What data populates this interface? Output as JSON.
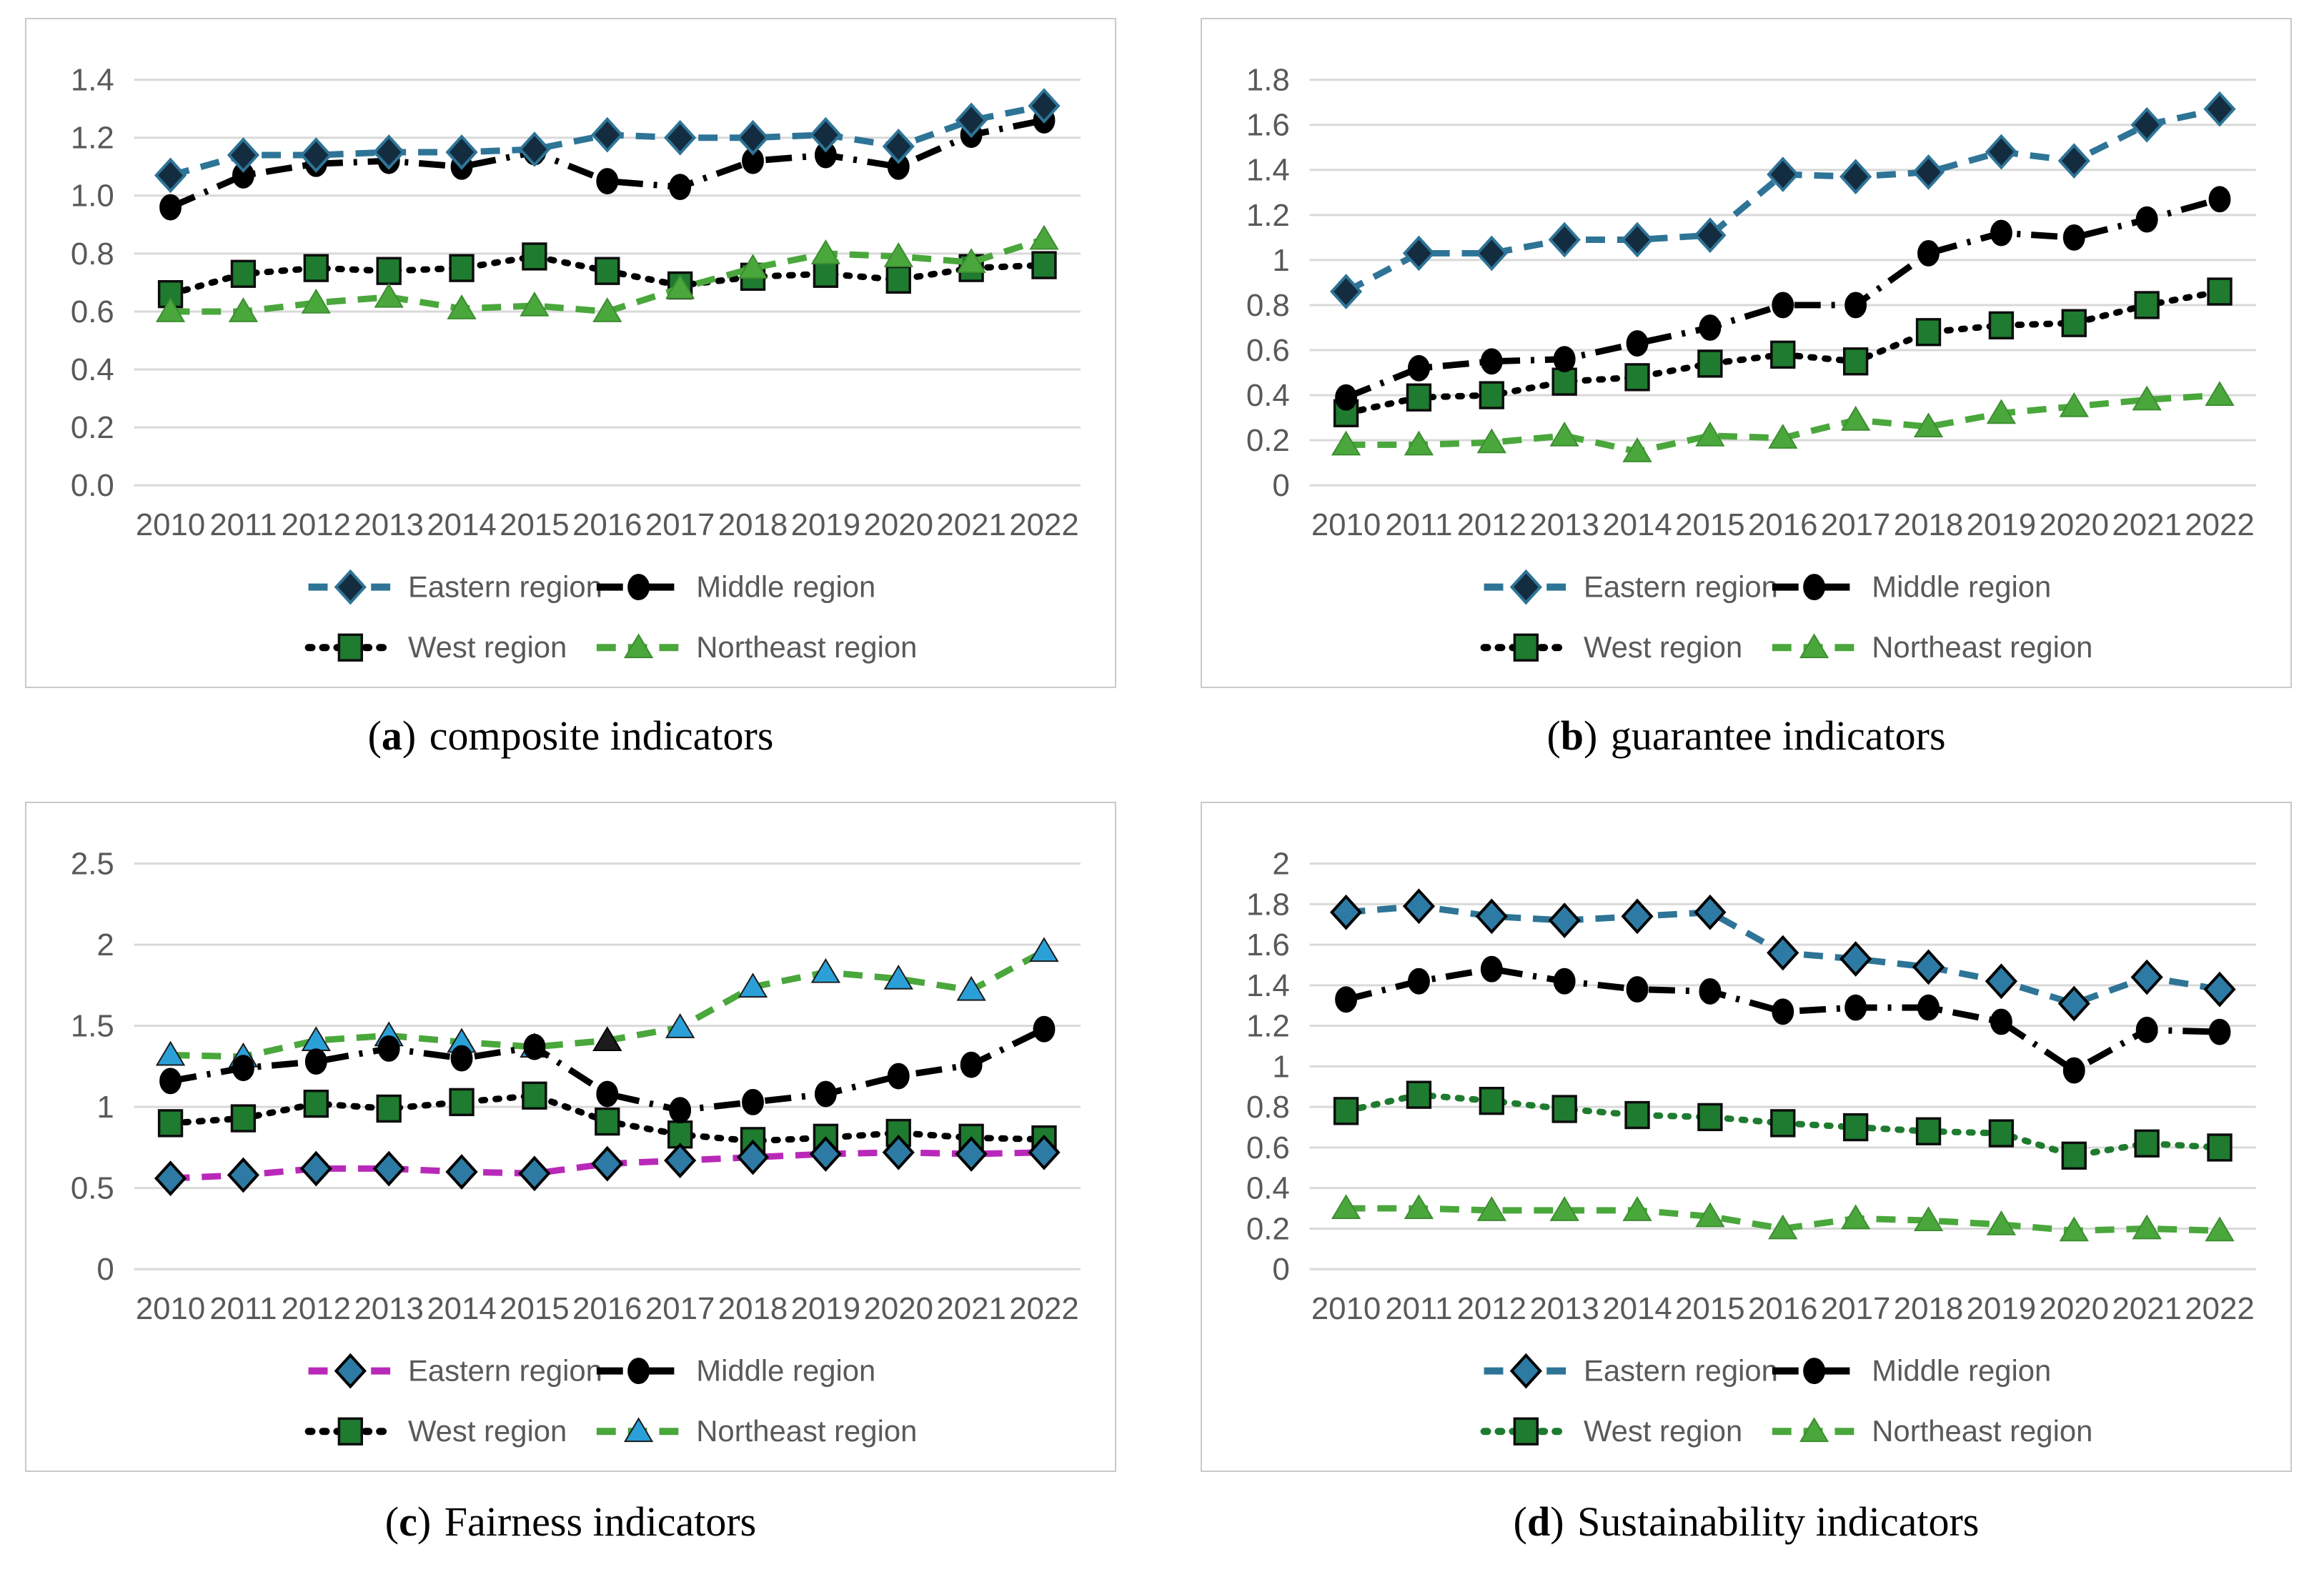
{
  "chart_data": [
    {
      "id": "a",
      "type": "line",
      "caption": {
        "open": "(",
        "letter": "a",
        "close": ")",
        "text": "composite indicators"
      },
      "categories": [
        2010,
        2011,
        2012,
        2013,
        2014,
        2015,
        2016,
        2017,
        2018,
        2019,
        2020,
        2021,
        2022
      ],
      "ylim": [
        0,
        1.4
      ],
      "ytick_step": 0.2,
      "ytick_format": "fixed1",
      "grid": true,
      "legend_position": "bottom",
      "axis_text_color": "#595959",
      "grid_color": "#d9d9d9",
      "series": [
        {
          "name": "Eastern region",
          "values": [
            1.07,
            1.14,
            1.14,
            1.15,
            1.15,
            1.16,
            1.21,
            1.2,
            1.2,
            1.21,
            1.17,
            1.26,
            1.31
          ],
          "line_color": "#2e7496",
          "line_style": "dash",
          "marker": "diamond",
          "marker_fill": "#132c40",
          "marker_stroke": "#2e7496"
        },
        {
          "name": "Middle region",
          "values": [
            0.96,
            1.07,
            1.11,
            1.12,
            1.1,
            1.15,
            1.05,
            1.03,
            1.12,
            1.14,
            1.1,
            1.21,
            1.26
          ],
          "line_color": "#000000",
          "line_style": "dashdot",
          "marker": "circle",
          "marker_fill": "#000000",
          "marker_stroke": "#000000"
        },
        {
          "name": "West region",
          "values": [
            0.66,
            0.73,
            0.75,
            0.74,
            0.75,
            0.79,
            0.74,
            0.69,
            0.72,
            0.73,
            0.71,
            0.75,
            0.76
          ],
          "line_color": "#000000",
          "line_style": "dot",
          "marker": "square",
          "marker_fill": "#1e7b2f",
          "marker_stroke": "#0d0d0d"
        },
        {
          "name": "Northeast region",
          "values": [
            0.6,
            0.6,
            0.63,
            0.65,
            0.61,
            0.62,
            0.6,
            0.68,
            0.75,
            0.8,
            0.79,
            0.77,
            0.85
          ],
          "line_color": "#4aa73c",
          "line_style": "dash",
          "marker": "triangle",
          "marker_fill": "#4aa73c",
          "marker_stroke": "#3d8d31"
        }
      ]
    },
    {
      "id": "b",
      "type": "line",
      "caption": {
        "open": "(",
        "letter": "b",
        "close": ")",
        "text": "guarantee indicators"
      },
      "categories": [
        2010,
        2011,
        2012,
        2013,
        2014,
        2015,
        2016,
        2017,
        2018,
        2019,
        2020,
        2021,
        2022
      ],
      "ylim": [
        0,
        1.8
      ],
      "ytick_step": 0.2,
      "ytick_format": "auto",
      "grid": true,
      "legend_position": "bottom",
      "axis_text_color": "#595959",
      "grid_color": "#d9d9d9",
      "series": [
        {
          "name": "Eastern region",
          "values": [
            0.86,
            1.03,
            1.03,
            1.09,
            1.09,
            1.11,
            1.38,
            1.37,
            1.39,
            1.48,
            1.44,
            1.6,
            1.67
          ],
          "line_color": "#2e7496",
          "line_style": "dash",
          "marker": "diamond",
          "marker_fill": "#132c40",
          "marker_stroke": "#2e7496"
        },
        {
          "name": "Middle region",
          "values": [
            0.39,
            0.52,
            0.55,
            0.56,
            0.63,
            0.7,
            0.8,
            0.8,
            1.03,
            1.12,
            1.1,
            1.18,
            1.27
          ],
          "line_color": "#000000",
          "line_style": "dashdot",
          "marker": "circle",
          "marker_fill": "#000000",
          "marker_stroke": "#000000"
        },
        {
          "name": "West region",
          "values": [
            0.32,
            0.39,
            0.4,
            0.46,
            0.48,
            0.54,
            0.58,
            0.55,
            0.68,
            0.71,
            0.72,
            0.8,
            0.86
          ],
          "line_color": "#000000",
          "line_style": "dot",
          "marker": "square",
          "marker_fill": "#1e7b2f",
          "marker_stroke": "#0d0d0d"
        },
        {
          "name": "Northeast region",
          "values": [
            0.18,
            0.18,
            0.19,
            0.22,
            0.15,
            0.22,
            0.21,
            0.29,
            0.26,
            0.32,
            0.35,
            0.38,
            0.4
          ],
          "line_color": "#4aa73c",
          "line_style": "dash",
          "marker": "triangle",
          "marker_fill": "#4aa73c",
          "marker_stroke": "#3d8d31"
        }
      ]
    },
    {
      "id": "c",
      "type": "line",
      "caption": {
        "open": "(",
        "letter": "c",
        "close": ")",
        "text": "Fairness indicators"
      },
      "categories": [
        2010,
        2011,
        2012,
        2013,
        2014,
        2015,
        2016,
        2017,
        2018,
        2019,
        2020,
        2021,
        2022
      ],
      "ylim": [
        0,
        2.5
      ],
      "ytick_step": 0.5,
      "ytick_format": "auto",
      "grid": true,
      "legend_position": "bottom",
      "axis_text_color": "#595959",
      "grid_color": "#d9d9d9",
      "series": [
        {
          "name": "Eastern region",
          "values": [
            0.56,
            0.58,
            0.62,
            0.62,
            0.6,
            0.59,
            0.65,
            0.67,
            0.69,
            0.71,
            0.72,
            0.71,
            0.72
          ],
          "line_color": "#b929b9",
          "line_style": "dash",
          "marker": "diamond",
          "marker_fill": "#2d7ba4",
          "marker_stroke": "#000000"
        },
        {
          "name": "Middle region",
          "values": [
            1.16,
            1.24,
            1.28,
            1.36,
            1.3,
            1.37,
            1.08,
            0.98,
            1.03,
            1.08,
            1.19,
            1.26,
            1.48
          ],
          "line_color": "#000000",
          "line_style": "dashdot",
          "marker": "circle",
          "marker_fill": "#000000",
          "marker_stroke": "#000000"
        },
        {
          "name": "West region",
          "values": [
            0.9,
            0.93,
            1.02,
            0.99,
            1.03,
            1.07,
            0.91,
            0.83,
            0.79,
            0.81,
            0.84,
            0.81,
            0.8
          ],
          "line_color": "#000000",
          "line_style": "dot",
          "marker": "square",
          "marker_fill": "#1e7b2f",
          "marker_stroke": "#0d0d0d"
        },
        {
          "name": "Northeast region",
          "values": [
            1.32,
            1.31,
            1.41,
            1.44,
            1.4,
            1.37,
            1.41,
            1.49,
            1.74,
            1.83,
            1.79,
            1.72,
            1.96
          ],
          "line_color": "#4aa73c",
          "line_style": "dash",
          "marker": "triangle",
          "marker_fill": "#2ba0d8",
          "marker_stroke": "#1b1b1b",
          "marker_overrides": {
            "6": {
              "fill": "#1c1c1c",
              "stroke": "#000000"
            }
          }
        }
      ]
    },
    {
      "id": "d",
      "type": "line",
      "caption": {
        "open": "(",
        "letter": "d",
        "close": ")",
        "text": "Sustainability indicators"
      },
      "categories": [
        2010,
        2011,
        2012,
        2013,
        2014,
        2015,
        2016,
        2017,
        2018,
        2019,
        2020,
        2021,
        2022
      ],
      "ylim": [
        0,
        2
      ],
      "ytick_step": 0.2,
      "ytick_format": "auto",
      "grid": true,
      "legend_position": "bottom",
      "axis_text_color": "#595959",
      "grid_color": "#d9d9d9",
      "series": [
        {
          "name": "Eastern region",
          "values": [
            1.76,
            1.79,
            1.74,
            1.72,
            1.74,
            1.76,
            1.56,
            1.53,
            1.49,
            1.42,
            1.31,
            1.44,
            1.38
          ],
          "line_color": "#2e7496",
          "line_style": "dash",
          "marker": "diamond",
          "marker_fill": "#2d7ba4",
          "marker_stroke": "#000000"
        },
        {
          "name": "Middle region",
          "values": [
            1.33,
            1.42,
            1.48,
            1.42,
            1.38,
            1.37,
            1.27,
            1.29,
            1.29,
            1.22,
            0.98,
            1.18,
            1.17
          ],
          "line_color": "#000000",
          "line_style": "dashdot",
          "marker": "circle",
          "marker_fill": "#000000",
          "marker_stroke": "#000000"
        },
        {
          "name": "West region",
          "values": [
            0.78,
            0.86,
            0.83,
            0.79,
            0.76,
            0.75,
            0.72,
            0.7,
            0.68,
            0.67,
            0.56,
            0.62,
            0.6
          ],
          "line_color": "#1e7b2f",
          "line_style": "dot",
          "marker": "square",
          "marker_fill": "#1e7b2f",
          "marker_stroke": "#0d0d0d"
        },
        {
          "name": "Northeast region",
          "values": [
            0.3,
            0.3,
            0.29,
            0.29,
            0.29,
            0.26,
            0.2,
            0.25,
            0.24,
            0.22,
            0.19,
            0.2,
            0.19
          ],
          "line_color": "#4aa73c",
          "line_style": "dash",
          "marker": "triangle",
          "marker_fill": "#4aa73c",
          "marker_stroke": "#3d8d31"
        }
      ]
    }
  ]
}
